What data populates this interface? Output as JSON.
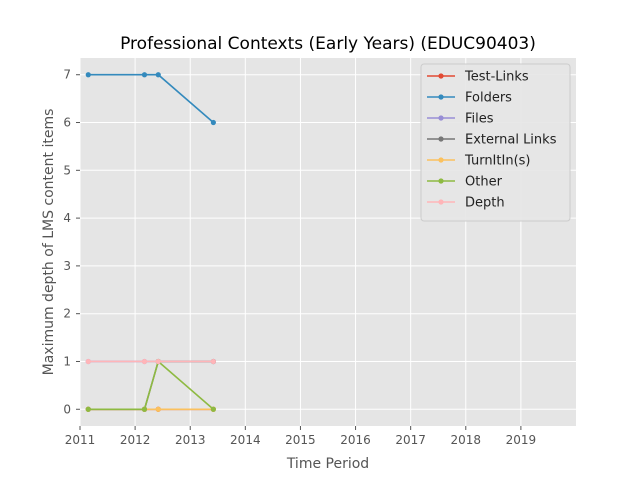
{
  "chart_data": {
    "type": "line",
    "title": "Professional Contexts (Early Years) (EDUC90403)",
    "xlabel": "Time Period",
    "ylabel": "Maximum depth of LMS content items",
    "xlim": [
      2011,
      2020
    ],
    "ylim": [
      -0.35,
      7.35
    ],
    "x_ticks": [
      2011,
      2012,
      2013,
      2014,
      2015,
      2016,
      2017,
      2018,
      2019
    ],
    "x_tick_labels": [
      "2011",
      "2012",
      "2013",
      "2014",
      "2015",
      "2016",
      "2017",
      "2018",
      "2019"
    ],
    "y_ticks": [
      0,
      1,
      2,
      3,
      4,
      5,
      6,
      7
    ],
    "y_tick_labels": [
      "0",
      "1",
      "2",
      "3",
      "4",
      "5",
      "6",
      "7"
    ],
    "grid": true,
    "legend_position": "top-right",
    "background_color": "#e5e5e5",
    "x": [
      2011.15,
      2012.17,
      2012.42,
      2013.42
    ],
    "series": [
      {
        "name": "Test-Links",
        "color": "#E24A33",
        "values": [
          0,
          0,
          0,
          0
        ]
      },
      {
        "name": "Folders",
        "color": "#348ABD",
        "values": [
          7,
          7,
          7,
          6
        ]
      },
      {
        "name": "Files",
        "color": "#988ED5",
        "values": [
          1,
          1,
          1,
          1
        ]
      },
      {
        "name": "External Links",
        "color": "#777777",
        "values": [
          0,
          0,
          1,
          1
        ]
      },
      {
        "name": "TurnItIn(s)",
        "color": "#FBC15E",
        "values": [
          0,
          0,
          0,
          0
        ]
      },
      {
        "name": "Other",
        "color": "#8EBA42",
        "values": [
          0,
          0,
          1,
          0
        ]
      },
      {
        "name": "Depth",
        "color": "#FFB5B8",
        "values": [
          1,
          1,
          1,
          1
        ]
      }
    ]
  }
}
